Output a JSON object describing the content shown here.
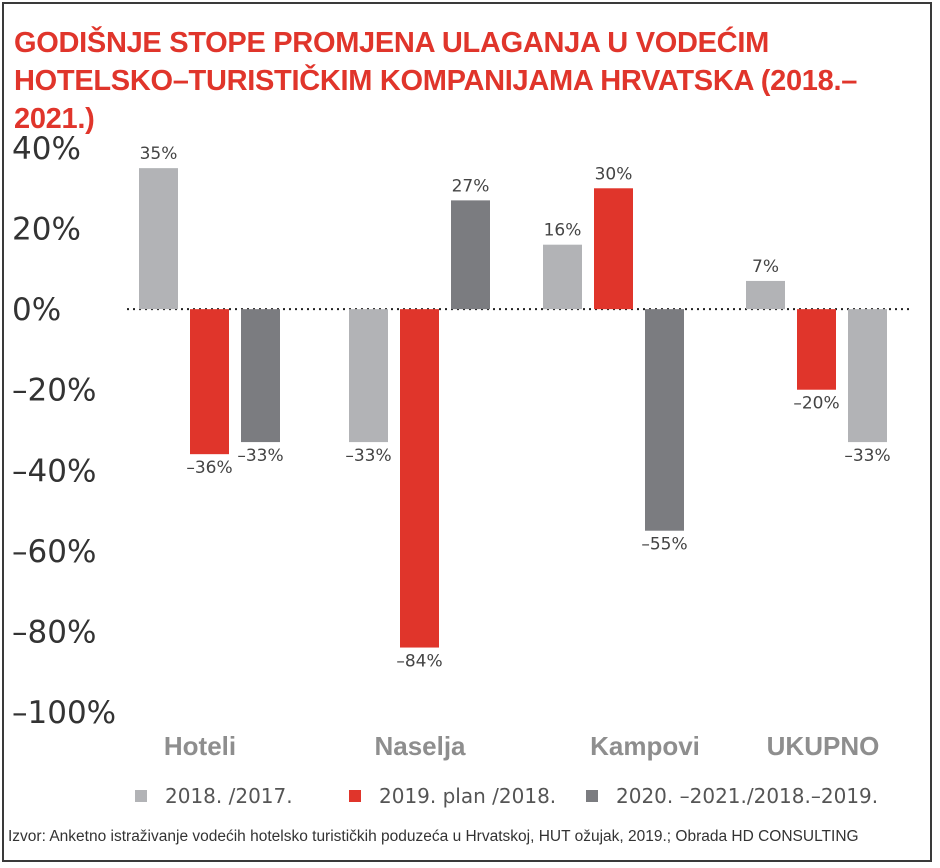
{
  "title_lines": [
    "GODIŠNJE STOPE PROMJENA ULAGANJA U  VODEĆIM",
    "HOTELSKO–TURISTIČKIM KOMPANIJAMA HRVATSKA (2018.–2021.)"
  ],
  "source": "Izvor: Anketno istraživanje vodećih hotelsko turističkih poduzeća u Hrvatskoj, HUT ožujak, 2019.; Obrada HD CONSULTING",
  "colors": {
    "title": "#e0352b",
    "light_gray": "#b2b3b6",
    "red": "#e0352b",
    "dark_gray": "#7b7c80"
  },
  "chart_data": {
    "type": "bar",
    "categories": [
      "Hoteli",
      "Naselja",
      "Kampovi",
      "UKUPNO"
    ],
    "ylim": [
      -100,
      40
    ],
    "yticks": [
      "40%",
      "20%",
      "0%",
      "–20%",
      "–40%",
      "–60%",
      "–80%",
      "–100%"
    ],
    "ytick_values": [
      40,
      20,
      0,
      -20,
      -40,
      -60,
      -80,
      -100
    ],
    "series": [
      {
        "name": "2018. /2017.",
        "color": "#b2b3b6"
      },
      {
        "name": "2019. plan /2018.",
        "color": "#e0352b"
      },
      {
        "name": "2020. –2021./2018.–2019.",
        "color": "#7b7c80"
      }
    ],
    "groups": [
      {
        "category": "Hoteli",
        "bars": [
          {
            "series": 0,
            "value": 35,
            "label": "35%"
          },
          {
            "series": 1,
            "value": -36,
            "label": "–36%"
          },
          {
            "series": 2,
            "value": -33,
            "label": "–33%"
          }
        ]
      },
      {
        "category": "Naselja",
        "bars": [
          {
            "series": 0,
            "value": -33,
            "label": "–33%"
          },
          {
            "series": 1,
            "value": -84,
            "label": "–84%"
          },
          {
            "series": 2,
            "value": 27,
            "label": "27%"
          }
        ]
      },
      {
        "category": "Kampovi",
        "bars": [
          {
            "series": 0,
            "value": 16,
            "label": "16%"
          },
          {
            "series": 1,
            "value": 30,
            "label": "30%"
          },
          {
            "series": 2,
            "value": -55,
            "label": "–55%"
          }
        ]
      },
      {
        "category": "UKUPNO",
        "bars": [
          {
            "series": 0,
            "value": 7,
            "label": "7%"
          },
          {
            "series": 1,
            "value": -20,
            "label": "–20%"
          },
          {
            "series": 0,
            "value": -33,
            "label": "–33%"
          }
        ]
      }
    ],
    "grid": false,
    "legend": "bottom",
    "zero_line": "dotted"
  }
}
